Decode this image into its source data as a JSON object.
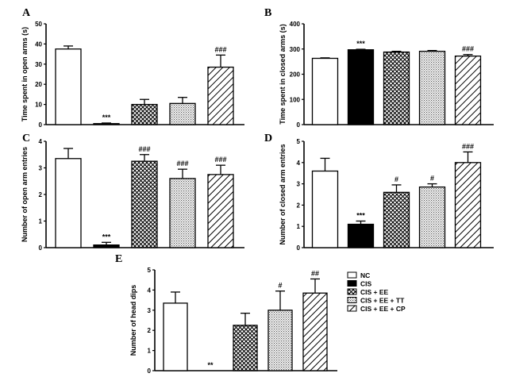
{
  "legend": {
    "labels": [
      "NC",
      "CIS",
      "CIS + EE",
      "CIS + EE + TT",
      "CIS + EE + CP"
    ]
  },
  "patterns": [
    "white",
    "black",
    "crosshatch",
    "dots",
    "diagonal"
  ],
  "chart_data": [
    {
      "panel": "A",
      "type": "bar",
      "ylabel": "Time spent in open arms (s)",
      "ylim": [
        0,
        50
      ],
      "yticks": [
        0,
        10,
        20,
        30,
        40,
        50
      ],
      "values": [
        37.5,
        0.5,
        10,
        10.5,
        28.5
      ],
      "errors": [
        1.5,
        0.3,
        2.5,
        3,
        6
      ],
      "annotations": [
        "",
        "***",
        "",
        "",
        "###"
      ]
    },
    {
      "panel": "B",
      "type": "bar",
      "ylabel": "Time spent in closed arms (s)",
      "ylim": [
        0,
        400
      ],
      "yticks": [
        0,
        100,
        200,
        300,
        400
      ],
      "values": [
        263,
        297,
        288,
        291,
        272
      ],
      "errors": [
        2,
        2,
        3,
        3,
        6
      ],
      "annotations": [
        "",
        "***",
        "",
        "",
        "###"
      ]
    },
    {
      "panel": "C",
      "type": "bar",
      "ylabel": "Number of open arm entries",
      "ylim": [
        0,
        4
      ],
      "yticks": [
        0,
        1,
        2,
        3,
        4
      ],
      "values": [
        3.35,
        0.1,
        3.25,
        2.6,
        2.75
      ],
      "errors": [
        0.38,
        0.1,
        0.25,
        0.35,
        0.35
      ],
      "annotations": [
        "",
        "***",
        "###",
        "###",
        "###"
      ]
    },
    {
      "panel": "D",
      "type": "bar",
      "ylabel": "Number of closed arm entries",
      "ylim": [
        0,
        5
      ],
      "yticks": [
        0,
        1,
        2,
        3,
        4,
        5
      ],
      "values": [
        3.6,
        1.1,
        2.6,
        2.85,
        4.0
      ],
      "errors": [
        0.6,
        0.15,
        0.35,
        0.15,
        0.5
      ],
      "annotations": [
        "",
        "***",
        "#",
        "#",
        "###"
      ]
    },
    {
      "panel": "E",
      "type": "bar",
      "ylabel": "Number of head dips",
      "ylim": [
        0,
        5
      ],
      "yticks": [
        0,
        1,
        2,
        3,
        4,
        5
      ],
      "values": [
        3.35,
        0,
        2.25,
        3.0,
        3.85
      ],
      "errors": [
        0.55,
        0,
        0.6,
        0.95,
        0.7
      ],
      "annotations": [
        "",
        "**",
        "",
        "#",
        "##"
      ]
    }
  ]
}
